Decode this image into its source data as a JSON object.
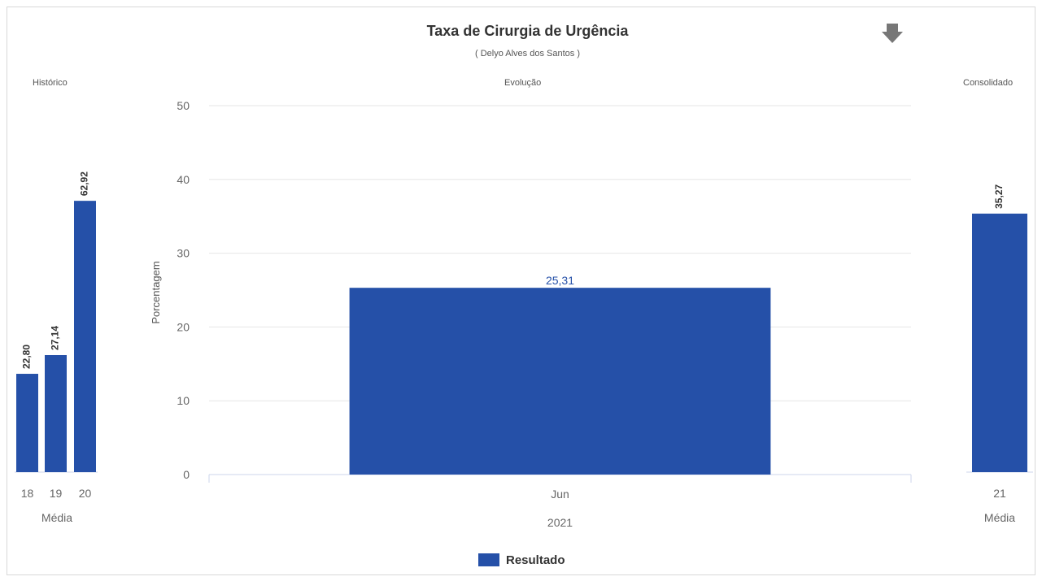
{
  "header": {
    "title": "Taxa de Cirurgia de Urgência",
    "subtitle": "( Delyo Alves dos Santos )"
  },
  "colors": {
    "bar": "#2550a8",
    "grid": "#e6e6e6",
    "axis": "#ccd6eb",
    "download_icon": "#777777"
  },
  "icons": {
    "download": "download-arrow-icon"
  },
  "legend": {
    "label": "Resultado"
  },
  "chart_data": [
    {
      "type": "bar",
      "section": "Histórico",
      "categories": [
        "18",
        "19",
        "20"
      ],
      "values": [
        22.8,
        27.14,
        62.92
      ],
      "value_labels": [
        "22,80",
        "27,14",
        "62,92"
      ],
      "xlabel": "Média",
      "ylim": [
        0,
        85
      ]
    },
    {
      "type": "bar",
      "section": "Evolução",
      "title": "Taxa de Cirurgia de Urgência",
      "subtitle": "( Delyo Alves dos Santos )",
      "categories": [
        "Jun"
      ],
      "values": [
        25.31
      ],
      "value_labels": [
        "25,31"
      ],
      "xlabel": "2021",
      "ylabel": "Porcentagem",
      "ylim": [
        0,
        50
      ],
      "yticks": [
        "0",
        "10",
        "20",
        "30",
        "40",
        "50"
      ],
      "grid": true,
      "legend": {
        "entries": [
          "Resultado"
        ],
        "position": "bottom-center"
      }
    },
    {
      "type": "bar",
      "section": "Consolidado",
      "categories": [
        "21"
      ],
      "values": [
        35.27
      ],
      "value_labels": [
        "35,27"
      ],
      "xlabel": "Média",
      "ylim": [
        0,
        50
      ]
    }
  ]
}
